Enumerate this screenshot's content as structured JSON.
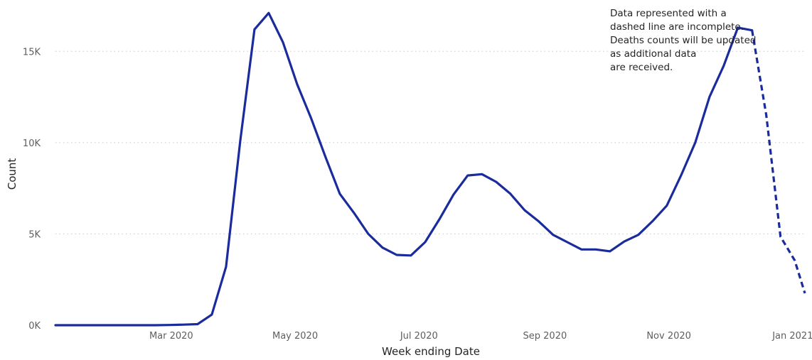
{
  "chart_data": {
    "type": "line",
    "xlabel": "Week ending Date",
    "ylabel": "Count",
    "ylim": [
      0,
      17500
    ],
    "xlim": [
      "2020-01-04",
      "2021-01-07"
    ],
    "grid": true,
    "y_ticks": [
      {
        "value": 0,
        "label": "0K"
      },
      {
        "value": 5000,
        "label": "5K"
      },
      {
        "value": 10000,
        "label": "10K"
      },
      {
        "value": 15000,
        "label": "15K"
      }
    ],
    "x_ticks": [
      {
        "value": "2020-03-01",
        "label": "Mar 2020"
      },
      {
        "value": "2020-05-01",
        "label": "May 2020"
      },
      {
        "value": "2020-07-01",
        "label": "Jul 2020"
      },
      {
        "value": "2020-09-01",
        "label": "Sep 2020"
      },
      {
        "value": "2020-11-01",
        "label": "Nov 2020"
      },
      {
        "value": "2021-01-01",
        "label": "Jan 2021"
      }
    ],
    "series": [
      {
        "color": "#1a2b9c",
        "complete": [
          [
            "2020-01-04",
            0
          ],
          [
            "2020-01-11",
            0
          ],
          [
            "2020-01-18",
            0
          ],
          [
            "2020-01-25",
            0
          ],
          [
            "2020-02-01",
            0
          ],
          [
            "2020-02-08",
            0
          ],
          [
            "2020-02-15",
            0
          ],
          [
            "2020-02-22",
            0
          ],
          [
            "2020-02-29",
            10
          ],
          [
            "2020-03-07",
            30
          ],
          [
            "2020-03-14",
            60
          ],
          [
            "2020-03-21",
            580
          ],
          [
            "2020-03-28",
            3200
          ],
          [
            "2020-04-04",
            10100
          ],
          [
            "2020-04-11",
            16200
          ],
          [
            "2020-04-18",
            17100
          ],
          [
            "2020-04-25",
            15500
          ],
          [
            "2020-05-02",
            13200
          ],
          [
            "2020-05-09",
            11300
          ],
          [
            "2020-05-16",
            9200
          ],
          [
            "2020-05-23",
            7200
          ],
          [
            "2020-05-30",
            6150
          ],
          [
            "2020-06-06",
            5000
          ],
          [
            "2020-06-13",
            4250
          ],
          [
            "2020-06-20",
            3850
          ],
          [
            "2020-06-27",
            3820
          ],
          [
            "2020-07-04",
            4550
          ],
          [
            "2020-07-11",
            5800
          ],
          [
            "2020-07-18",
            7150
          ],
          [
            "2020-07-25",
            8200
          ],
          [
            "2020-08-01",
            8270
          ],
          [
            "2020-08-08",
            7850
          ],
          [
            "2020-08-15",
            7200
          ],
          [
            "2020-08-22",
            6300
          ],
          [
            "2020-08-29",
            5680
          ],
          [
            "2020-09-05",
            4950
          ],
          [
            "2020-09-12",
            4550
          ],
          [
            "2020-09-19",
            4150
          ],
          [
            "2020-09-26",
            4150
          ],
          [
            "2020-10-03",
            4050
          ],
          [
            "2020-10-10",
            4580
          ],
          [
            "2020-10-17",
            4950
          ],
          [
            "2020-10-24",
            5700
          ],
          [
            "2020-10-31",
            6550
          ],
          [
            "2020-11-07",
            8200
          ],
          [
            "2020-11-14",
            10000
          ],
          [
            "2020-11-21",
            12500
          ],
          [
            "2020-11-28",
            14200
          ],
          [
            "2020-12-05",
            16300
          ],
          [
            "2020-12-12",
            16150
          ]
        ],
        "incomplete": [
          [
            "2020-12-12",
            16150
          ],
          [
            "2020-12-19",
            11500
          ],
          [
            "2020-12-26",
            4850
          ],
          [
            "2021-01-02",
            3550
          ],
          [
            "2021-01-07",
            1750
          ]
        ]
      }
    ],
    "annotation": [
      "Data represented with a",
      "dashed line are incomplete.",
      "Deaths counts will be updated",
      "as additional data",
      "are received."
    ]
  }
}
